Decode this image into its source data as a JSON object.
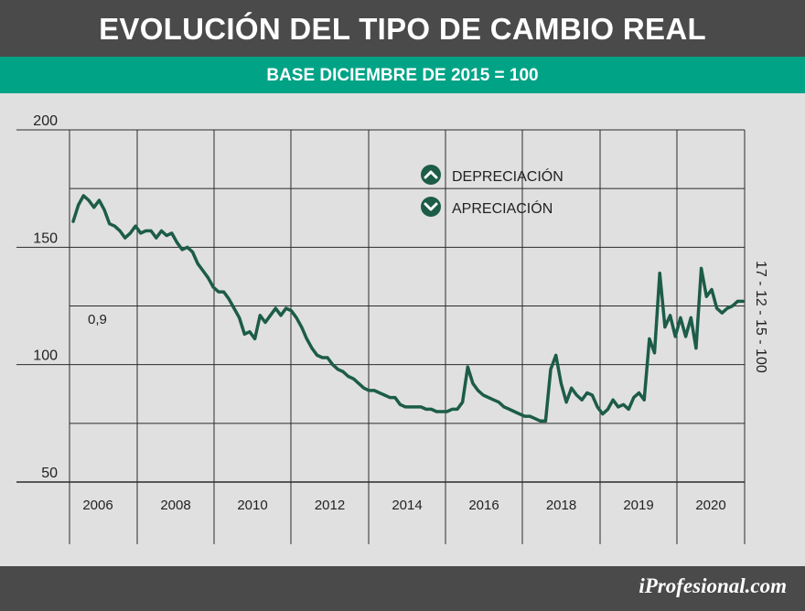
{
  "header": {
    "title": "EVOLUCIÓN DEL TIPO DE CAMBIO REAL"
  },
  "subheader": {
    "subtitle": "BASE DICIEMBRE DE 2015 = 100"
  },
  "footer": {
    "brand": "iProfesional.com"
  },
  "colors": {
    "line": "#1c5c48",
    "accent": "#00a386",
    "dark": "#4a4a4a",
    "background": "#e0e0e0"
  },
  "legend": {
    "items": [
      {
        "label": "DEPRECIACIÓN",
        "icon": "chevron-up-icon"
      },
      {
        "label": "APRECIACIÓN",
        "icon": "chevron-down-icon"
      }
    ]
  },
  "annotations": {
    "left_value": "0,9",
    "date_label": "17 - 12 - 15 - 100"
  },
  "chart_data": {
    "type": "line",
    "title": "EVOLUCIÓN DEL TIPO DE CAMBIO REAL",
    "subtitle": "BASE DICIEMBRE DE 2015 = 100",
    "xlabel": "",
    "ylabel": "",
    "ylim": [
      50,
      200
    ],
    "yticks": [
      50,
      100,
      150,
      200
    ],
    "grid": true,
    "legend_placement": "top-center",
    "xticks": [
      "2006",
      "2008",
      "2010",
      "2012",
      "2014",
      "2016",
      "2018",
      "2019",
      "2020"
    ],
    "series": [
      {
        "values": [
          161,
          168,
          172,
          170,
          167,
          170,
          166,
          160,
          159,
          157,
          154,
          156,
          159,
          156,
          157,
          157,
          154,
          157,
          155,
          156,
          152,
          149,
          150,
          148,
          143,
          140,
          137,
          133,
          131,
          131,
          128,
          124,
          120,
          113,
          114,
          111,
          121,
          118,
          121,
          124,
          121,
          124,
          123,
          120,
          116,
          111,
          107,
          104,
          103,
          103,
          100,
          98,
          97,
          95,
          94,
          92,
          90,
          89,
          89,
          88,
          87,
          86,
          86,
          83,
          82,
          82,
          82,
          82,
          81,
          81,
          80,
          80,
          80,
          81,
          81,
          84,
          99,
          92,
          89,
          87,
          86,
          85,
          84,
          82,
          81,
          80,
          79,
          78,
          78,
          77,
          76,
          76,
          98,
          104,
          92,
          84,
          90,
          87,
          85,
          88,
          87,
          82,
          79,
          81,
          85,
          82,
          83,
          81,
          86,
          88,
          85,
          111,
          105,
          139,
          116,
          121,
          112,
          120,
          112,
          120,
          107,
          141,
          129,
          132,
          124,
          122,
          124,
          125,
          127,
          127
        ]
      }
    ]
  }
}
